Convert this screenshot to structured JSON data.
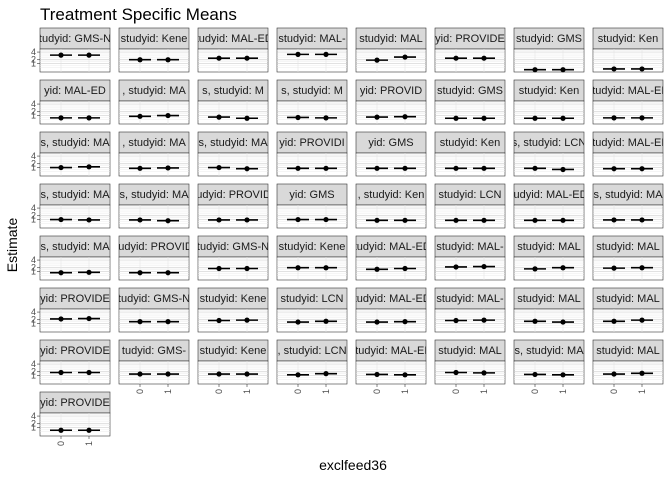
{
  "chart_data": {
    "type": "pointrange",
    "title": "Treatment Specific Means",
    "xlabel": "exclfeed36",
    "ylabel": "Estimate",
    "x_categories": [
      "0",
      "1"
    ],
    "y_tick_labels": [
      "1",
      "2",
      "4"
    ],
    "grid": true,
    "facet_ncol": 8,
    "panels": [
      {
        "strip": "tudyid: GMS-N",
        "y": [
          3.2,
          3.2
        ]
      },
      {
        "strip": "studyid: Kene",
        "y": [
          2.0,
          2.0
        ]
      },
      {
        "strip": "studyid: MAL-ED,",
        "y": [
          2.4,
          2.4
        ]
      },
      {
        "strip": "studyid: MAL-",
        "y": [
          3.4,
          3.4
        ]
      },
      {
        "strip": "studyid: MAL",
        "y": [
          1.9,
          2.7
        ]
      },
      {
        "strip": "yid: PROVIDE",
        "y": [
          2.4,
          2.4
        ]
      },
      {
        "strip": "studyid: GMS",
        "y": [
          -0.6,
          -0.6
        ]
      },
      {
        "strip": "studyid: Ken",
        "y": [
          -0.4,
          -0.4
        ]
      },
      {
        "strip": "yid: MAL-ED",
        "y": [
          0.4,
          0.4
        ]
      },
      {
        "strip": ", studyid: MA",
        "y": [
          0.8,
          1.0
        ]
      },
      {
        "strip": "s, studyid: M",
        "y": [
          0.6,
          0.3
        ]
      },
      {
        "strip": "s, studyid: M",
        "y": [
          0.5,
          0.4
        ]
      },
      {
        "strip": "yid: PROVID",
        "y": [
          0.6,
          0.7
        ]
      },
      {
        "strip": "studyid: GMS",
        "y": [
          0.3,
          0.3
        ]
      },
      {
        "strip": "studyid: Ken",
        "y": [
          0.3,
          0.3
        ]
      },
      {
        "strip": "studyid: MAL-ED",
        "y": [
          0.4,
          0.4
        ]
      },
      {
        "strip": "s, studyid: MA",
        "y": [
          1.0,
          1.2
        ]
      },
      {
        "strip": ", studyid: MA",
        "y": [
          0.8,
          0.9
        ]
      },
      {
        "strip": "s, studyid: MA",
        "y": [
          1.0,
          0.7
        ]
      },
      {
        "strip": "yid: PROVIDI",
        "y": [
          0.8,
          0.8
        ]
      },
      {
        "strip": "yid: GMS",
        "y": [
          0.8,
          0.8
        ]
      },
      {
        "strip": "studyid: Ken",
        "y": [
          0.8,
          0.8
        ]
      },
      {
        "strip": "s, studyid: LCN",
        "y": [
          0.8,
          0.5
        ]
      },
      {
        "strip": "studyid: MAL-ED",
        "y": [
          0.7,
          0.7
        ]
      },
      {
        "strip": "s, studyid: MA",
        "y": [
          1.0,
          0.9
        ]
      },
      {
        "strip": "s, studyid: MA",
        "y": [
          0.9,
          0.7
        ]
      },
      {
        "strip": "studyid: PROVIDE",
        "y": [
          0.9,
          0.9
        ]
      },
      {
        "strip": "yid: GMS",
        "y": [
          1.0,
          1.0
        ]
      },
      {
        "strip": ", studyid: Ken",
        "y": [
          0.8,
          0.8
        ]
      },
      {
        "strip": "studyid: LCN",
        "y": [
          0.8,
          0.8
        ]
      },
      {
        "strip": "tudyid: MAL-ED",
        "y": [
          0.8,
          0.8
        ]
      },
      {
        "strip": "s, studyid: MA",
        "y": [
          0.9,
          0.9
        ]
      },
      {
        "strip": "s, studyid: MA",
        "y": [
          0.7,
          0.8
        ]
      },
      {
        "strip": "tudyid: PROVID",
        "y": [
          0.7,
          0.7
        ]
      },
      {
        "strip": "tudyid: GMS-N",
        "y": [
          1.8,
          1.8
        ]
      },
      {
        "strip": "studyid: Kene",
        "y": [
          2.0,
          2.0
        ]
      },
      {
        "strip": "studyid: MAL-ED,",
        "y": [
          1.6,
          1.8
        ]
      },
      {
        "strip": "studyid: MAL-",
        "y": [
          2.2,
          2.3
        ]
      },
      {
        "strip": "studyid: MAL",
        "y": [
          1.7,
          2.0
        ]
      },
      {
        "strip": "studyid: MAL",
        "y": [
          1.9,
          2.0
        ]
      },
      {
        "strip": "yid: PROVIDE",
        "y": [
          2.2,
          2.3
        ]
      },
      {
        "strip": "tudyid: GMS-N",
        "y": [
          1.5,
          1.5
        ]
      },
      {
        "strip": "studyid: Kene",
        "y": [
          1.8,
          1.9
        ]
      },
      {
        "strip": "studyid: LCN",
        "y": [
          1.4,
          1.6
        ]
      },
      {
        "strip": "studyid: MAL-ED,",
        "y": [
          1.4,
          1.5
        ]
      },
      {
        "strip": "studyid: MAL-",
        "y": [
          1.8,
          1.9
        ]
      },
      {
        "strip": "studyid: MAL",
        "y": [
          1.6,
          1.4
        ]
      },
      {
        "strip": "studyid: MAL",
        "y": [
          1.6,
          1.9
        ]
      },
      {
        "strip": "yid: PROVIDE",
        "y": [
          1.8,
          1.8
        ]
      },
      {
        "strip": "tudyid: GMS-",
        "y": [
          1.4,
          1.4
        ]
      },
      {
        "strip": "studyid: Kene",
        "y": [
          1.4,
          1.4
        ]
      },
      {
        "strip": ", studyid: LCN",
        "y": [
          1.2,
          1.5
        ]
      },
      {
        "strip": "studyid: MAL-ED",
        "y": [
          1.3,
          1.2
        ]
      },
      {
        "strip": "studyid: MAL",
        "y": [
          1.8,
          1.7
        ]
      },
      {
        "strip": "s, studyid: MA",
        "y": [
          1.3,
          1.2
        ]
      },
      {
        "strip": "studyid: MAL",
        "y": [
          1.4,
          1.6
        ]
      },
      {
        "strip": "yid: PROVIDE",
        "y": [
          0.3,
          0.3
        ]
      }
    ]
  }
}
